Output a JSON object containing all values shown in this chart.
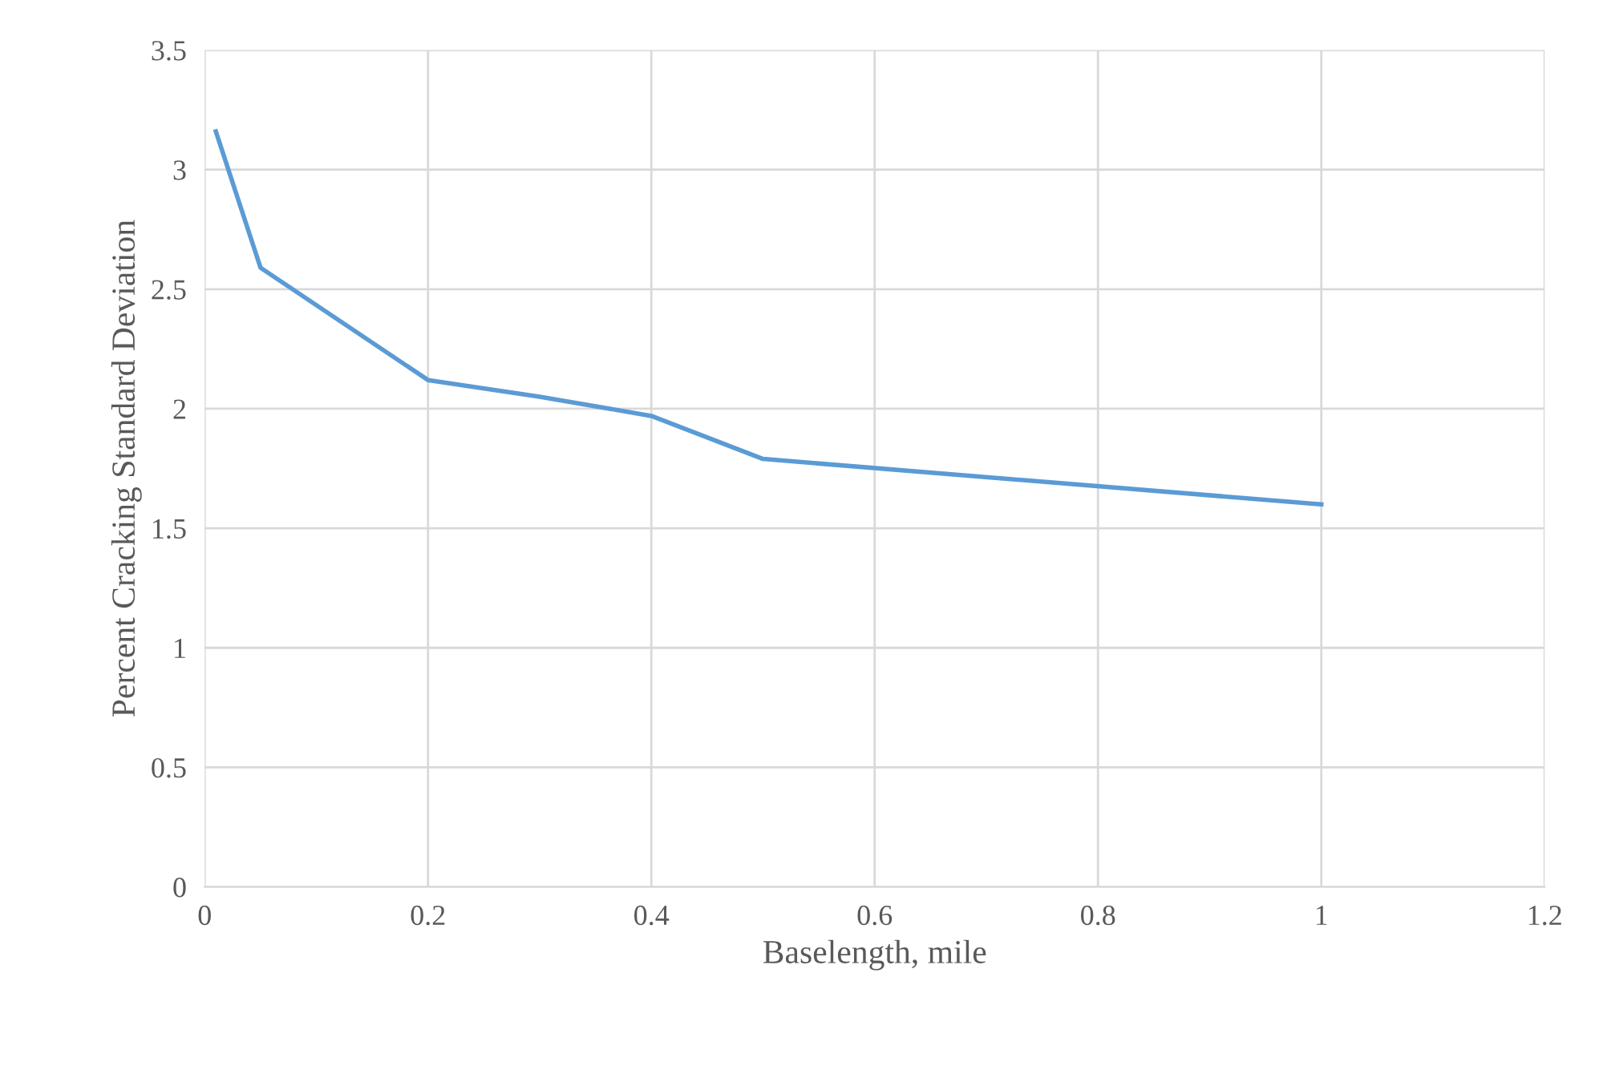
{
  "chart_data": {
    "type": "line",
    "xlabel": "Baselength, mile",
    "ylabel": "Percent Cracking Standard Deviation",
    "x": [
      0.01,
      0.05,
      0.2,
      0.3,
      0.4,
      0.5,
      1
    ],
    "series": [
      {
        "color": "#5b9bd5",
        "values": [
          3.16,
          2.59,
          2.12,
          2.05,
          1.97,
          1.79,
          1.6
        ]
      }
    ],
    "xlim": [
      0,
      1.2
    ],
    "xticks": [
      0,
      0.2,
      0.4,
      0.6,
      0.8,
      1,
      1.2
    ],
    "ylim": [
      0,
      3.5
    ],
    "yticks": [
      0,
      0.5,
      1,
      1.5,
      2,
      2.5,
      3,
      3.5
    ],
    "grid": true,
    "legend": false,
    "marker": "none",
    "line_style": "solid"
  }
}
